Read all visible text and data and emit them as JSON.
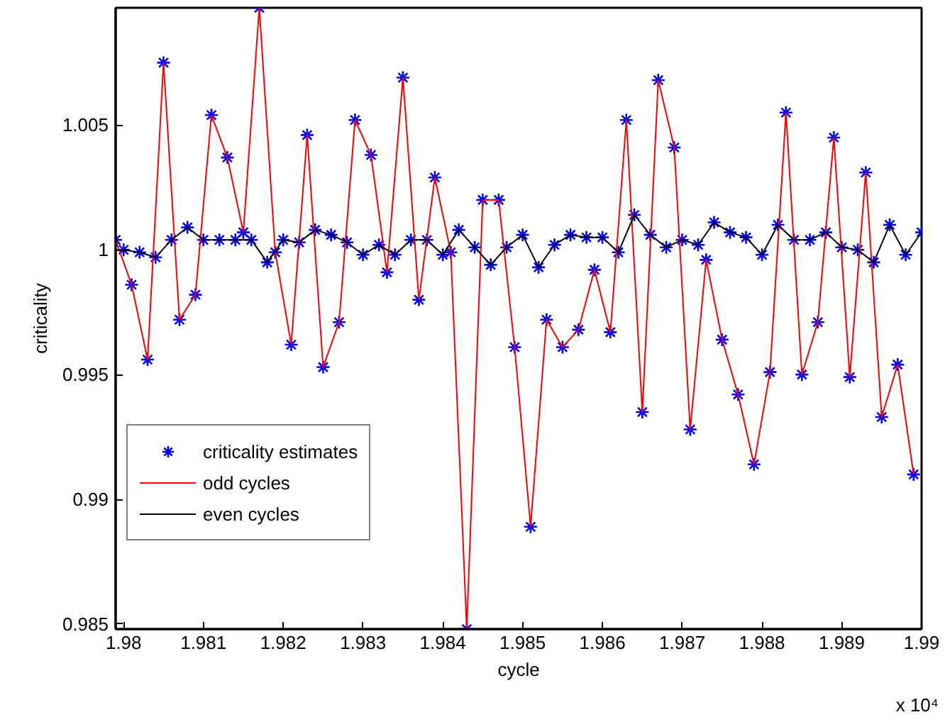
{
  "chart_data": {
    "type": "line",
    "xlabel": "cycle",
    "ylabel": "criticality",
    "xlim": [
      1.9799,
      1.99
    ],
    "ylim": [
      0.9848,
      1.0097
    ],
    "xticks": [
      1.98,
      1.981,
      1.982,
      1.983,
      1.984,
      1.985,
      1.986,
      1.987,
      1.988,
      1.989,
      1.99
    ],
    "yticks": [
      0.985,
      0.99,
      0.995,
      1,
      1.005
    ],
    "grid": false,
    "legend": "bottom left",
    "annotations": [
      "x 10⁴"
    ],
    "series": [
      {
        "type": "scatter",
        "name": "criticality estimates",
        "color": "#0000ff",
        "marker": "cross",
        "x": [
          1.9799,
          1.98,
          1.9801,
          1.9802,
          1.9803,
          1.9804,
          1.9805,
          1.9806,
          1.9807,
          1.9808,
          1.9809,
          1.981,
          1.9811,
          1.9812,
          1.9813,
          1.9814,
          1.9815,
          1.9816,
          1.9817,
          1.9818,
          1.9819,
          1.982,
          1.9821,
          1.9822,
          1.9823,
          1.9824,
          1.9825,
          1.9826,
          1.9827,
          1.9828,
          1.9829,
          1.983,
          1.9831,
          1.9832,
          1.9833,
          1.9834,
          1.9835,
          1.9836,
          1.9837,
          1.9838,
          1.9839,
          1.984,
          1.9841,
          1.9842,
          1.9843,
          1.9844,
          1.9845,
          1.9846,
          1.9847,
          1.9848,
          1.9849,
          1.985,
          1.9851,
          1.9852,
          1.9853,
          1.9854,
          1.9855,
          1.9856,
          1.9857,
          1.9858,
          1.9859,
          1.986,
          1.9861,
          1.9862,
          1.9863,
          1.9864,
          1.9865,
          1.9866,
          1.9867,
          1.9868,
          1.9869,
          1.987,
          1.9871,
          1.9872,
          1.9873,
          1.9874,
          1.9875,
          1.9876,
          1.9877,
          1.9878,
          1.9879,
          1.988,
          1.9881,
          1.9882,
          1.9883,
          1.9884,
          1.9885,
          1.9886,
          1.9887,
          1.9888,
          1.9889,
          1.989,
          1.9891,
          1.9892,
          1.9893,
          1.9894,
          1.9895,
          1.9896,
          1.9897,
          1.9898,
          1.9899,
          1.99
        ],
        "values": [
          1.0004,
          1.0,
          0.9986,
          0.9999,
          0.9956,
          0.9997,
          1.0075,
          1.0004,
          0.9972,
          1.0009,
          0.9982,
          1.0004,
          1.0054,
          1.0004,
          1.0037,
          1.0004,
          1.0007,
          1.0004,
          1.0097,
          0.9995,
          0.9999,
          1.0004,
          0.9962,
          1.0003,
          1.0046,
          1.0008,
          0.9953,
          1.0006,
          0.9971,
          1.0003,
          1.0052,
          0.9998,
          1.0038,
          1.0002,
          0.9991,
          0.9998,
          1.0069,
          1.0004,
          0.998,
          1.0004,
          1.0029,
          0.9998,
          0.9999,
          1.0008,
          0.9848,
          1.0001,
          1.002,
          0.9994,
          1.002,
          1.0001,
          0.9961,
          1.0006,
          0.9889,
          0.9993,
          0.9972,
          1.0002,
          0.9961,
          1.0006,
          0.9968,
          1.0005,
          0.9992,
          1.0005,
          0.9967,
          0.9999,
          1.0052,
          1.0014,
          0.9935,
          1.0006,
          1.0068,
          1.0001,
          1.0041,
          1.0004,
          0.9928,
          1.0002,
          0.9996,
          1.0011,
          0.9964,
          1.0007,
          0.9942,
          1.0005,
          0.9914,
          0.9998,
          0.9951,
          1.001,
          1.0055,
          1.0004,
          0.995,
          1.0004,
          0.9971,
          1.0007,
          1.0045,
          1.0001,
          0.9949,
          1.0,
          1.0031,
          0.9995,
          0.9933,
          1.001,
          0.9954,
          0.9998,
          0.991,
          1.0007
        ]
      },
      {
        "name": "odd cycles",
        "color": "#ff0000",
        "x": [
          1.9799,
          1.9801,
          1.9803,
          1.9805,
          1.9807,
          1.9809,
          1.9811,
          1.9813,
          1.9815,
          1.9817,
          1.9819,
          1.9821,
          1.9823,
          1.9825,
          1.9827,
          1.9829,
          1.9831,
          1.9833,
          1.9835,
          1.9837,
          1.9839,
          1.9841,
          1.9843,
          1.9845,
          1.9847,
          1.9849,
          1.9851,
          1.9853,
          1.9855,
          1.9857,
          1.9859,
          1.9861,
          1.9863,
          1.9865,
          1.9867,
          1.9869,
          1.9871,
          1.9873,
          1.9875,
          1.9877,
          1.9879,
          1.9881,
          1.9883,
          1.9885,
          1.9887,
          1.9889,
          1.9891,
          1.9893,
          1.9895,
          1.9897,
          1.9899
        ],
        "values": [
          1.0004,
          0.9986,
          0.9956,
          1.0075,
          0.9972,
          0.9982,
          1.0054,
          1.0037,
          1.0007,
          1.0097,
          0.9999,
          0.9962,
          1.0046,
          0.9953,
          0.9971,
          1.0052,
          1.0038,
          0.9991,
          1.0069,
          0.998,
          1.0029,
          0.9999,
          0.9848,
          1.002,
          1.002,
          0.9961,
          0.9889,
          0.9972,
          0.9961,
          0.9968,
          0.9992,
          0.9967,
          1.0052,
          0.9935,
          1.0068,
          1.0041,
          0.9928,
          0.9996,
          0.9964,
          0.9942,
          0.9914,
          0.9951,
          1.0055,
          0.995,
          0.9971,
          1.0045,
          0.9949,
          1.0031,
          0.9933,
          0.9954,
          0.991
        ]
      },
      {
        "name": "even cycles",
        "color": "#000000",
        "x": [
          1.98,
          1.9802,
          1.9804,
          1.9806,
          1.9808,
          1.981,
          1.9812,
          1.9814,
          1.9816,
          1.9818,
          1.982,
          1.9822,
          1.9824,
          1.9826,
          1.9828,
          1.983,
          1.9832,
          1.9834,
          1.9836,
          1.9838,
          1.984,
          1.9842,
          1.9844,
          1.9846,
          1.9848,
          1.985,
          1.9852,
          1.9854,
          1.9856,
          1.9858,
          1.986,
          1.9862,
          1.9864,
          1.9866,
          1.9868,
          1.987,
          1.9872,
          1.9874,
          1.9876,
          1.9878,
          1.988,
          1.9882,
          1.9884,
          1.9886,
          1.9888,
          1.989,
          1.9892,
          1.9894,
          1.9896,
          1.9898,
          1.99
        ],
        "values": [
          1.0,
          0.9999,
          0.9997,
          1.0004,
          1.0009,
          1.0004,
          1.0004,
          1.0004,
          1.0004,
          0.9995,
          1.0004,
          1.0003,
          1.0008,
          1.0006,
          1.0003,
          0.9998,
          1.0002,
          0.9998,
          1.0004,
          1.0004,
          0.9998,
          1.0008,
          1.0001,
          0.9994,
          1.0001,
          1.0006,
          0.9993,
          1.0002,
          1.0006,
          1.0005,
          1.0005,
          0.9999,
          1.0014,
          1.0006,
          1.0001,
          1.0004,
          1.0002,
          1.0011,
          1.0007,
          1.0005,
          0.9998,
          1.001,
          1.0004,
          1.0004,
          1.0007,
          1.0001,
          1.0,
          0.9995,
          1.001,
          0.9998,
          1.0007
        ]
      }
    ]
  }
}
